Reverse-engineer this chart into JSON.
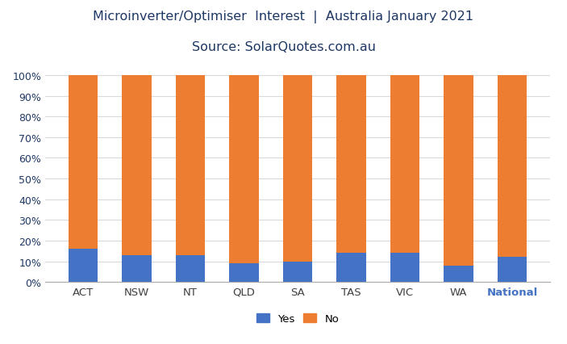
{
  "categories": [
    "ACT",
    "NSW",
    "NT",
    "QLD",
    "SA",
    "TAS",
    "VIC",
    "WA",
    "National"
  ],
  "yes_values": [
    16,
    13,
    13,
    9,
    10,
    14,
    14,
    8,
    12
  ],
  "no_values": [
    84,
    87,
    87,
    91,
    90,
    86,
    86,
    92,
    88
  ],
  "yes_color": "#4472C4",
  "no_color": "#ED7D31",
  "title_line1": "Microinverter/Optimiser  Interest  |  Australia January 2021",
  "title_line2": "Source: SolarQuotes.com.au",
  "title_color": "#1F3864",
  "national_color": "#4472C4",
  "background_color": "#FFFFFF",
  "grid_color": "#D9D9D9",
  "ytick_color": "#1F3864",
  "xtick_color": "#404040",
  "ylim": [
    0,
    100
  ],
  "ytick_values": [
    0,
    10,
    20,
    30,
    40,
    50,
    60,
    70,
    80,
    90,
    100
  ],
  "ytick_labels": [
    "0%",
    "10%",
    "20%",
    "30%",
    "40%",
    "50%",
    "60%",
    "70%",
    "80%",
    "90%",
    "100%"
  ],
  "legend_yes": "Yes",
  "legend_no": "No",
  "bar_width": 0.55,
  "figsize": [
    7.03,
    4.27
  ],
  "dpi": 100
}
